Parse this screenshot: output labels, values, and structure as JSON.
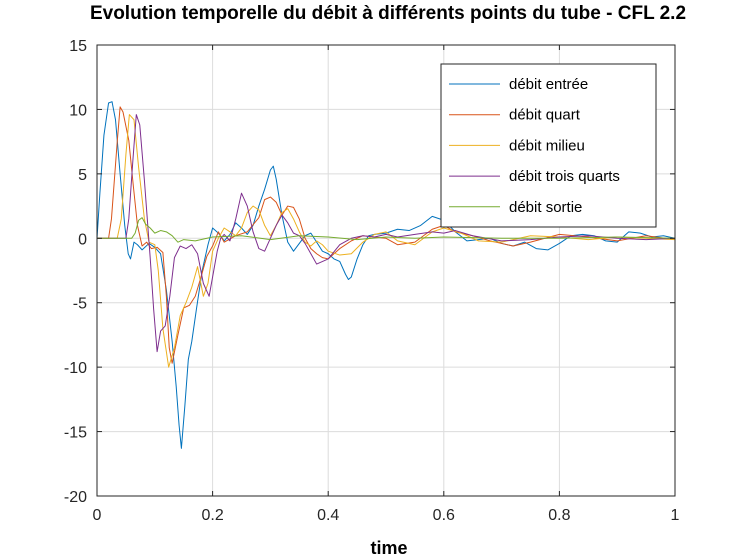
{
  "chart_data": {
    "type": "line",
    "title": "Evolution temporelle du débit à différents points du tube - CFL 2.2",
    "xlabel": "time",
    "ylabel": "",
    "xlim": [
      0,
      1
    ],
    "ylim": [
      -20,
      15
    ],
    "xticks": [
      "0",
      "0.2",
      "0.4",
      "0.6",
      "0.8",
      "1"
    ],
    "yticks": [
      "15",
      "10",
      "5",
      "0",
      "-5",
      "-10",
      "-15",
      "-20"
    ],
    "grid": true,
    "legend_position": "top-right",
    "series": [
      {
        "name": "débit entrée",
        "color": "#0072BD",
        "x": [
          0,
          0.005,
          0.012,
          0.02,
          0.026,
          0.032,
          0.04,
          0.048,
          0.054,
          0.058,
          0.064,
          0.07,
          0.078,
          0.09,
          0.1,
          0.11,
          0.12,
          0.13,
          0.137,
          0.142,
          0.146,
          0.152,
          0.158,
          0.164,
          0.172,
          0.182,
          0.192,
          0.2,
          0.21,
          0.22,
          0.23,
          0.24,
          0.25,
          0.26,
          0.27,
          0.28,
          0.29,
          0.3,
          0.305,
          0.31,
          0.32,
          0.33,
          0.34,
          0.35,
          0.36,
          0.37,
          0.38,
          0.39,
          0.4,
          0.41,
          0.42,
          0.43,
          0.435,
          0.44,
          0.45,
          0.46,
          0.47,
          0.48,
          0.5,
          0.52,
          0.54,
          0.56,
          0.58,
          0.6,
          0.62,
          0.64,
          0.66,
          0.68,
          0.7,
          0.72,
          0.74,
          0.76,
          0.78,
          0.8,
          0.82,
          0.84,
          0.86,
          0.88,
          0.9,
          0.92,
          0.94,
          0.96,
          0.98,
          1.0
        ],
        "y": [
          0,
          3.5,
          8,
          10.5,
          10.6,
          9.2,
          5,
          1,
          -1.2,
          -1.6,
          -0.3,
          -0.5,
          -0.9,
          -0.4,
          -0.7,
          -1.2,
          -4,
          -8,
          -11.5,
          -14.5,
          -16.3,
          -13,
          -9.4,
          -8,
          -5.5,
          -2.5,
          -0.5,
          0.8,
          0.4,
          -0.2,
          0.3,
          1.2,
          0.8,
          0.3,
          1,
          2.5,
          3.8,
          5.3,
          5.6,
          4.6,
          1.8,
          -0.3,
          -1,
          -0.4,
          0.2,
          0.4,
          -0.3,
          -1,
          -1.2,
          -1.6,
          -1.8,
          -2.8,
          -3.2,
          -3,
          -1.6,
          -0.5,
          0.2,
          0.3,
          0.4,
          0.7,
          0.6,
          1,
          1.7,
          1.4,
          0.5,
          -0.2,
          -0.1,
          0,
          -0.4,
          -0.6,
          -0.3,
          -0.8,
          -0.9,
          -0.4,
          0.2,
          0.3,
          0.2,
          -0.2,
          -0.3,
          0.5,
          0.4,
          0.1,
          0.2,
          0
        ]
      },
      {
        "name": "débit quart",
        "color": "#D95319",
        "x": [
          0,
          0.02,
          0.025,
          0.035,
          0.04,
          0.045,
          0.055,
          0.063,
          0.07,
          0.078,
          0.086,
          0.094,
          0.104,
          0.114,
          0.12,
          0.125,
          0.13,
          0.14,
          0.15,
          0.16,
          0.17,
          0.18,
          0.19,
          0.2,
          0.21,
          0.22,
          0.24,
          0.26,
          0.28,
          0.29,
          0.3,
          0.31,
          0.32,
          0.33,
          0.34,
          0.35,
          0.36,
          0.37,
          0.38,
          0.39,
          0.4,
          0.42,
          0.44,
          0.46,
          0.48,
          0.5,
          0.52,
          0.55,
          0.58,
          0.6,
          0.62,
          0.65,
          0.68,
          0.7,
          0.72,
          0.75,
          0.8,
          0.85,
          0.9,
          0.95,
          1.0
        ],
        "y": [
          0,
          0,
          1.5,
          7.5,
          10.2,
          9.8,
          7.6,
          4,
          1,
          -0.6,
          -0.3,
          -0.8,
          -0.7,
          -1.1,
          -4.5,
          -8.5,
          -9.7,
          -7.5,
          -5.4,
          -5.2,
          -4.5,
          -3,
          -1.4,
          -0.6,
          0.5,
          -0.3,
          0.2,
          0.5,
          1.6,
          3,
          3.2,
          2.8,
          1.8,
          2.5,
          2.4,
          1.5,
          0,
          -0.8,
          -1.2,
          -1.5,
          -1.6,
          -0.8,
          -0.2,
          0.2,
          0.1,
          0,
          -0.5,
          -0.3,
          0.7,
          1,
          0.5,
          0.2,
          -0.2,
          -0.4,
          -0.6,
          -0.3,
          0.3,
          0.1,
          -0.2,
          0.2,
          -0.1
        ]
      },
      {
        "name": "débit milieu",
        "color": "#EDB120",
        "x": [
          0,
          0.035,
          0.042,
          0.05,
          0.056,
          0.064,
          0.072,
          0.082,
          0.09,
          0.1,
          0.106,
          0.114,
          0.124,
          0.134,
          0.144,
          0.154,
          0.164,
          0.174,
          0.184,
          0.192,
          0.2,
          0.21,
          0.22,
          0.23,
          0.24,
          0.25,
          0.26,
          0.27,
          0.28,
          0.29,
          0.3,
          0.31,
          0.32,
          0.33,
          0.34,
          0.35,
          0.36,
          0.37,
          0.38,
          0.39,
          0.4,
          0.42,
          0.44,
          0.46,
          0.48,
          0.5,
          0.52,
          0.55,
          0.58,
          0.6,
          0.63,
          0.66,
          0.7,
          0.75,
          0.8,
          0.85,
          0.9,
          0.95,
          1.0
        ],
        "y": [
          0,
          0,
          1.5,
          6.5,
          9.6,
          9.2,
          5.5,
          1.5,
          -0.3,
          -0.5,
          -2.5,
          -7,
          -10,
          -8.5,
          -6,
          -5,
          -3.8,
          -2.2,
          -4.5,
          -3.5,
          -1,
          0,
          0.8,
          0.5,
          0.2,
          0.8,
          2,
          2.5,
          2.2,
          1,
          0.2,
          1,
          2,
          2.3,
          1.5,
          0.5,
          -0.3,
          -0.6,
          -0.2,
          -0.5,
          -1,
          -1.3,
          -1.2,
          -0.3,
          0.3,
          0.5,
          -0.2,
          -0.5,
          0.5,
          0.8,
          0.4,
          -0.2,
          -0.3,
          0.2,
          0.1,
          -0.1,
          0.1,
          0,
          -0.1
        ]
      },
      {
        "name": "débit trois quarts",
        "color": "#7E2F8E",
        "x": [
          0,
          0.05,
          0.055,
          0.062,
          0.068,
          0.074,
          0.082,
          0.092,
          0.098,
          0.104,
          0.11,
          0.118,
          0.126,
          0.134,
          0.144,
          0.154,
          0.164,
          0.174,
          0.184,
          0.194,
          0.202,
          0.208,
          0.214,
          0.22,
          0.23,
          0.24,
          0.25,
          0.26,
          0.27,
          0.28,
          0.29,
          0.3,
          0.31,
          0.32,
          0.33,
          0.34,
          0.35,
          0.36,
          0.38,
          0.4,
          0.42,
          0.44,
          0.46,
          0.48,
          0.5,
          0.52,
          0.55,
          0.58,
          0.6,
          0.62,
          0.65,
          0.7,
          0.75,
          0.8,
          0.85,
          0.9,
          0.95,
          1.0
        ],
        "y": [
          0,
          0,
          1.5,
          6,
          9.6,
          8.8,
          4.5,
          -1.5,
          -5.5,
          -8.8,
          -7.2,
          -6.8,
          -4.5,
          -1.5,
          -0.6,
          -0.8,
          -0.5,
          -1.2,
          -3.5,
          -4.5,
          -2.5,
          -1,
          0,
          0.3,
          -0.2,
          1.5,
          3.5,
          2.5,
          0.5,
          -0.8,
          -1,
          0,
          1,
          1.8,
          1.2,
          0.4,
          0.2,
          -0.4,
          -2,
          -1.6,
          -0.5,
          0,
          0.2,
          0.1,
          0.3,
          0.1,
          0.3,
          0.5,
          0.4,
          0.6,
          0.2,
          -0.2,
          -0.1,
          0.1,
          0.2,
          0,
          -0.1,
          0
        ]
      },
      {
        "name": "débit sortie",
        "color": "#77AC30",
        "x": [
          0,
          0.06,
          0.066,
          0.072,
          0.078,
          0.084,
          0.092,
          0.1,
          0.11,
          0.12,
          0.13,
          0.14,
          0.15,
          0.17,
          0.2,
          0.25,
          0.3,
          0.35,
          0.4,
          0.45,
          0.5,
          0.55,
          0.6,
          0.7,
          0.8,
          0.9,
          1.0
        ],
        "y": [
          0,
          0,
          0.4,
          1.4,
          1.6,
          1.1,
          0.8,
          0.4,
          0.6,
          0.5,
          0.2,
          -0.3,
          -0.1,
          -0.2,
          0.1,
          0.2,
          -0.1,
          0.2,
          0.1,
          -0.1,
          0.1,
          0,
          0.1,
          0,
          0,
          0.1,
          0
        ]
      }
    ]
  }
}
